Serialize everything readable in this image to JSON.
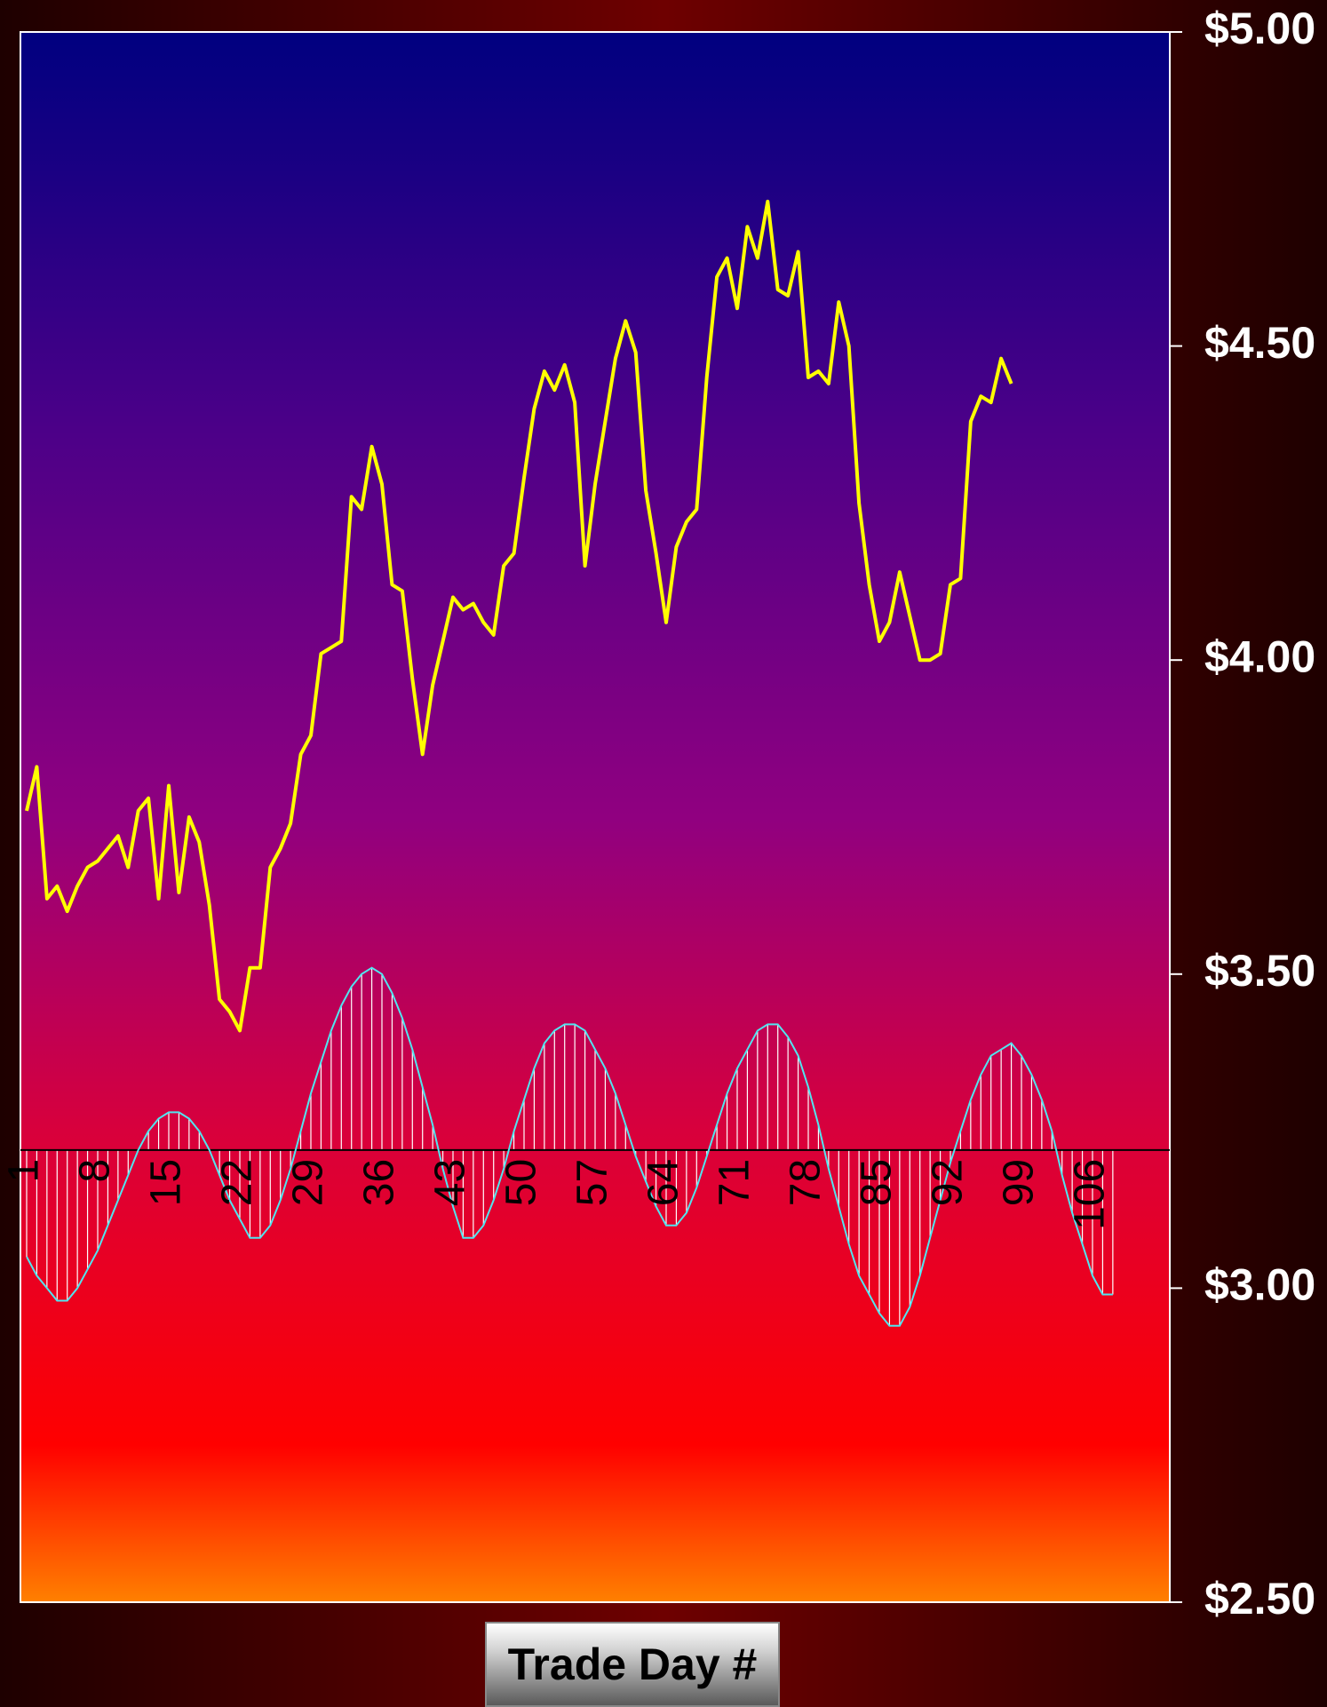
{
  "chart_data": {
    "type": "line",
    "title": "",
    "xlabel": "Trade Day #",
    "ylabel": "",
    "ylim": [
      2.5,
      5.0
    ],
    "y_ticks": [
      {
        "value": 5.0,
        "label": "$5.00"
      },
      {
        "value": 4.5,
        "label": "$4.50"
      },
      {
        "value": 4.0,
        "label": "$4.00"
      },
      {
        "value": 3.5,
        "label": "$3.50"
      },
      {
        "value": 3.0,
        "label": "$3.00"
      },
      {
        "value": 2.5,
        "label": "$2.50"
      }
    ],
    "x_range": [
      1,
      113
    ],
    "x_tick_labels": [
      "1",
      "8",
      "15",
      "22",
      "29",
      "36",
      "43",
      "50",
      "57",
      "64",
      "71",
      "78",
      "85",
      "92",
      "99",
      "106"
    ],
    "y_axis_side": "right",
    "grid": false,
    "series": [
      {
        "color": "#ffff00",
        "x_start": 1,
        "values": [
          3.76,
          3.83,
          3.62,
          3.64,
          3.6,
          3.64,
          3.67,
          3.68,
          3.7,
          3.72,
          3.67,
          3.76,
          3.78,
          3.62,
          3.8,
          3.63,
          3.75,
          3.71,
          3.61,
          3.46,
          3.44,
          3.41,
          3.51,
          3.51,
          3.67,
          3.7,
          3.74,
          3.85,
          3.88,
          4.01,
          4.02,
          4.03,
          4.26,
          4.24,
          4.34,
          4.28,
          4.12,
          4.11,
          3.97,
          3.85,
          3.96,
          4.03,
          4.1,
          4.08,
          4.09,
          4.06,
          4.04,
          4.15,
          4.17,
          4.29,
          4.4,
          4.46,
          4.43,
          4.47,
          4.41,
          4.15,
          4.28,
          4.38,
          4.48,
          4.54,
          4.49,
          4.27,
          4.17,
          4.06,
          4.18,
          4.22,
          4.24,
          4.45,
          4.61,
          4.64,
          4.56,
          4.69,
          4.64,
          4.73,
          4.59,
          4.58,
          4.65,
          4.45,
          4.46,
          4.44,
          4.57,
          4.5,
          4.25,
          4.12,
          4.03,
          4.06,
          4.14,
          4.07,
          4.0,
          4.0,
          4.01,
          4.12,
          4.13,
          4.38,
          4.42,
          4.41,
          4.48,
          4.44
        ]
      },
      {
        "color": "#50e6f0",
        "style": "oscillator-area",
        "baseline": 3.22,
        "x_start": 1,
        "values": [
          3.05,
          3.02,
          3.0,
          2.98,
          2.98,
          3.0,
          3.03,
          3.06,
          3.1,
          3.14,
          3.18,
          3.22,
          3.25,
          3.27,
          3.28,
          3.28,
          3.27,
          3.25,
          3.22,
          3.18,
          3.14,
          3.11,
          3.08,
          3.08,
          3.1,
          3.14,
          3.19,
          3.25,
          3.31,
          3.36,
          3.41,
          3.45,
          3.48,
          3.5,
          3.51,
          3.5,
          3.47,
          3.43,
          3.38,
          3.32,
          3.26,
          3.19,
          3.13,
          3.08,
          3.08,
          3.1,
          3.14,
          3.19,
          3.25,
          3.3,
          3.35,
          3.39,
          3.41,
          3.42,
          3.42,
          3.41,
          3.38,
          3.35,
          3.31,
          3.26,
          3.21,
          3.17,
          3.13,
          3.1,
          3.1,
          3.12,
          3.16,
          3.21,
          3.26,
          3.31,
          3.35,
          3.38,
          3.41,
          3.42,
          3.42,
          3.4,
          3.37,
          3.32,
          3.26,
          3.19,
          3.13,
          3.07,
          3.02,
          2.99,
          2.96,
          2.94,
          2.94,
          2.97,
          3.02,
          3.08,
          3.14,
          3.2,
          3.25,
          3.3,
          3.34,
          3.37,
          3.38,
          3.39,
          3.37,
          3.34,
          3.3,
          3.25,
          3.18,
          3.12,
          3.07,
          3.02,
          2.99,
          2.99
        ]
      }
    ]
  }
}
